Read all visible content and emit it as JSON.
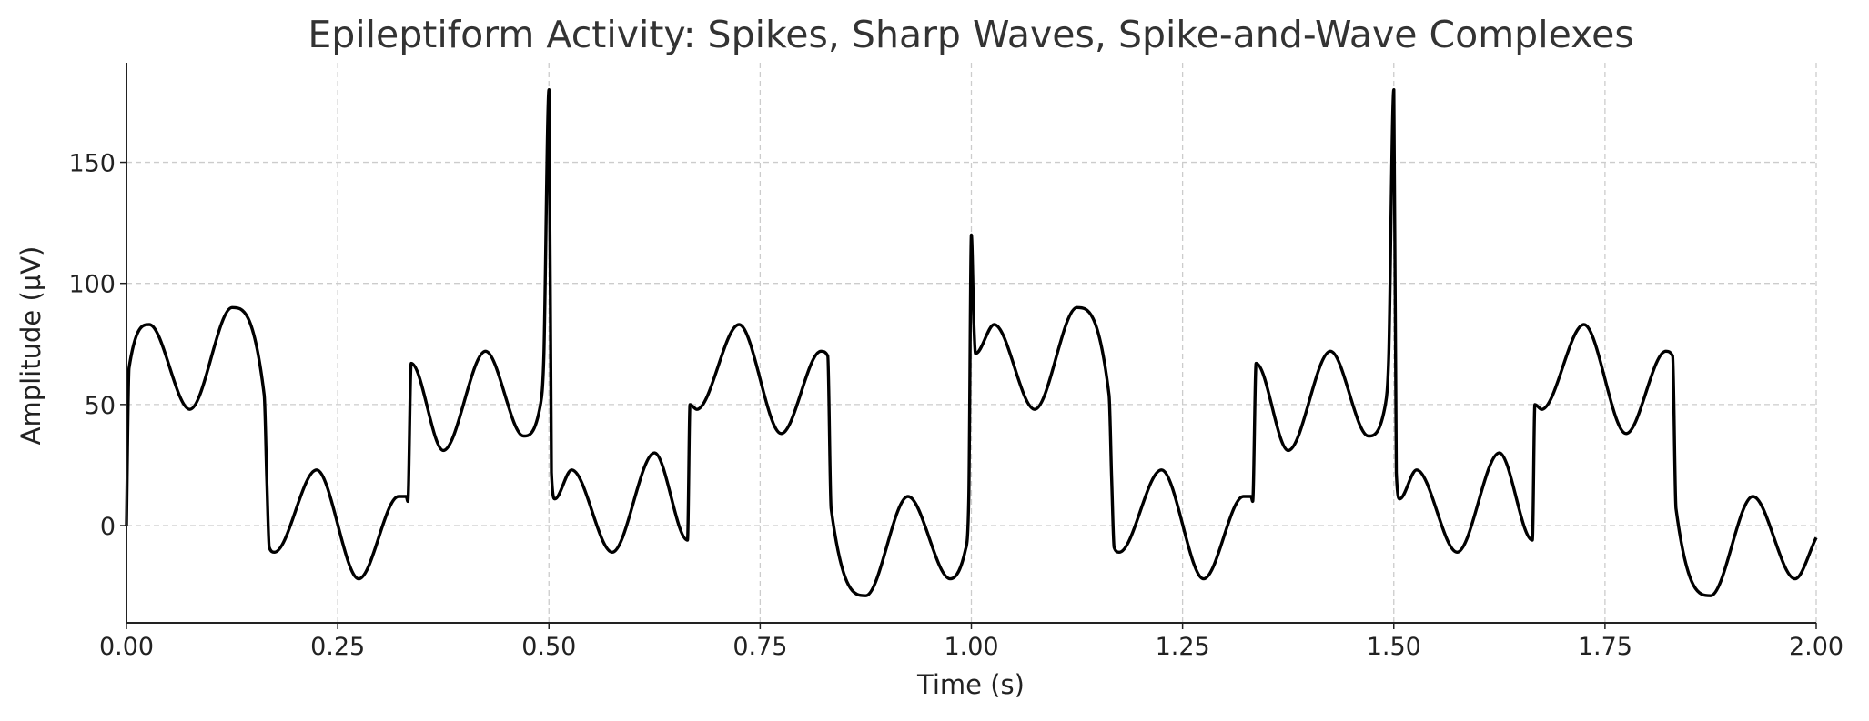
{
  "chart_data": {
    "type": "line",
    "title": "Epileptiform Activity: Spikes, Sharp Waves, Spike-and-Wave Complexes",
    "xlabel": "Time (s)",
    "ylabel": "Amplitude (µV)",
    "xlim": [
      0,
      2
    ],
    "ylim": [
      -40,
      191
    ],
    "grid": true,
    "legend": "none",
    "line_color": "#000000",
    "grid_color": "#cccccc",
    "xticks": [
      "0.00",
      "0.25",
      "0.50",
      "0.75",
      "1.00",
      "1.25",
      "1.50",
      "1.75",
      "2.00"
    ],
    "xtick_values": [
      0,
      0.25,
      0.5,
      0.75,
      1,
      1.25,
      1.5,
      1.75,
      2
    ],
    "yticks": [
      "0",
      "50",
      "100",
      "150"
    ],
    "ytick_values": [
      0,
      50,
      100,
      150
    ],
    "series": [
      {
        "x": [
          0,
          0.003,
          0.027,
          0.075,
          0.125,
          0.163,
          0.166,
          0.169,
          0.175,
          0.225,
          0.275,
          0.322,
          0.331,
          0.333,
          0.337,
          0.375,
          0.425,
          0.47,
          0.49,
          0.494,
          0.5,
          0.503,
          0.507,
          0.527,
          0.575,
          0.625,
          0.664,
          0.667,
          0.675,
          0.725,
          0.775,
          0.822,
          0.83,
          0.834,
          0.875,
          0.925,
          0.975,
          0.993,
          0.997,
          1.0,
          1.003,
          1.005,
          1.027,
          1.075,
          1.125,
          1.163,
          1.166,
          1.169,
          1.175,
          1.225,
          1.275,
          1.322,
          1.331,
          1.333,
          1.337,
          1.375,
          1.425,
          1.47,
          1.49,
          1.494,
          1.5,
          1.503,
          1.507,
          1.527,
          1.575,
          1.625,
          1.664,
          1.667,
          1.675,
          1.725,
          1.775,
          1.822,
          1.83,
          1.834,
          1.875,
          1.925,
          1.975,
          2.0
        ],
        "y": [
          0,
          65,
          83,
          48,
          90,
          54,
          20,
          -9,
          -11,
          23,
          -22,
          12,
          12,
          10,
          67,
          31,
          72,
          37,
          50,
          70,
          180,
          22,
          11,
          23,
          -11,
          30,
          -6,
          50,
          48,
          83,
          38,
          72,
          70,
          7,
          -29,
          12,
          -22,
          -10,
          12,
          120,
          83,
          71,
          83,
          48,
          90,
          54,
          20,
          -9,
          -11,
          23,
          -22,
          12,
          12,
          10,
          67,
          31,
          72,
          37,
          50,
          70,
          180,
          22,
          11,
          23,
          -11,
          30,
          -6,
          50,
          48,
          83,
          38,
          72,
          70,
          7,
          -29,
          12,
          -22,
          -5
        ]
      }
    ]
  }
}
